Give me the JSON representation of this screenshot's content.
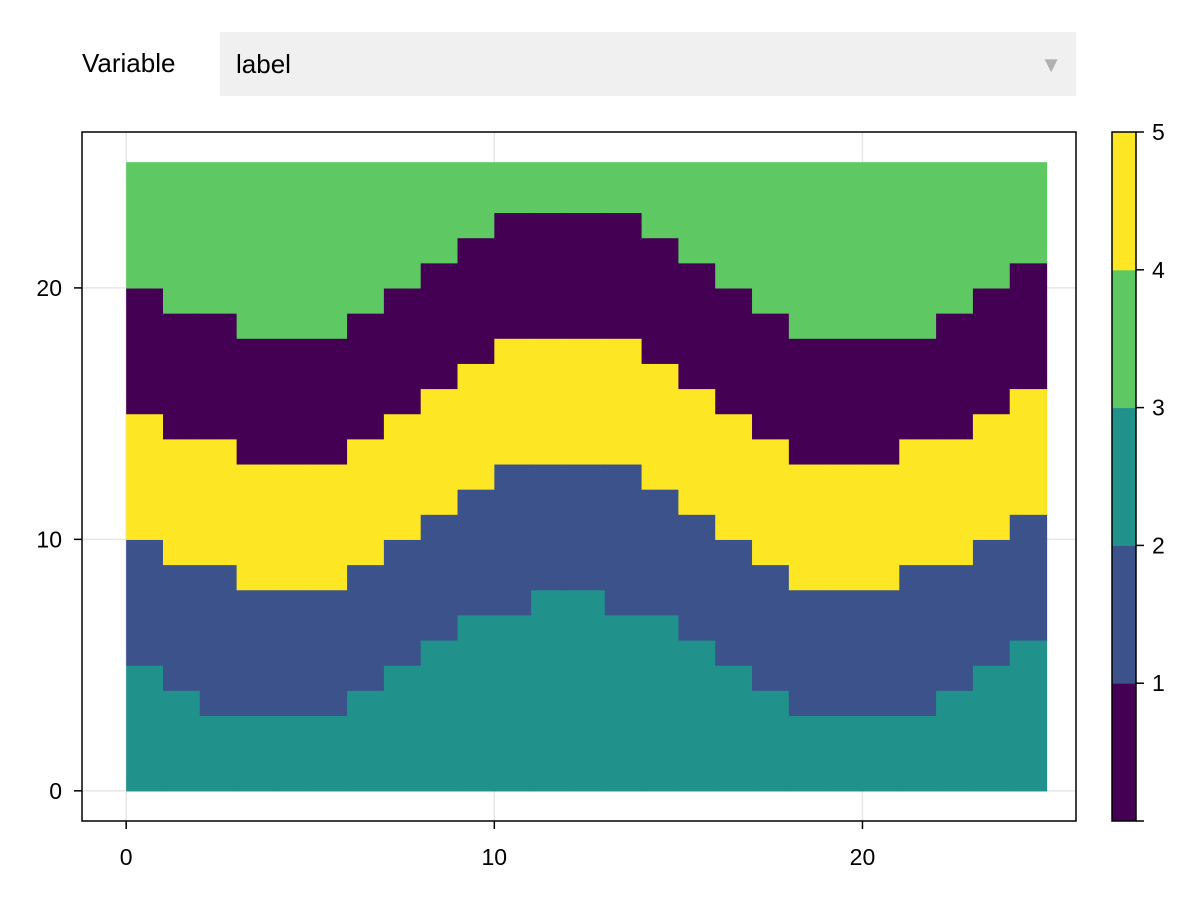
{
  "menu": {
    "label": "Variable",
    "selected": "label",
    "arrow_icon": "triangle-down-icon"
  },
  "chart_data": {
    "type": "heatmap",
    "title": "",
    "xlabel": "",
    "ylabel": "",
    "xlim": [
      -1.2,
      25.8
    ],
    "ylim": [
      -1.2,
      26.2
    ],
    "xticks": [
      0,
      10,
      20
    ],
    "yticks": [
      0,
      10,
      20
    ],
    "grid": true,
    "x_cells": 25,
    "y_cells": 25,
    "x_range": [
      0,
      25
    ],
    "y_range": [
      0,
      25
    ],
    "colormap": [
      "#440154",
      "#3b528b",
      "#21918c",
      "#5ec962",
      "#fde725"
    ],
    "colorbar": {
      "ticks": [
        1,
        2,
        3,
        4,
        5
      ],
      "range": [
        0,
        5
      ]
    },
    "band_values": [
      3,
      2,
      5,
      1,
      4
    ],
    "boundaries": [
      [
        5,
        4,
        3,
        3,
        3,
        3,
        4,
        5,
        6,
        7,
        7,
        8,
        8,
        7,
        7,
        6,
        5,
        4,
        3,
        3,
        3,
        3,
        4,
        5,
        6
      ],
      [
        10,
        9,
        9,
        8,
        8,
        8,
        9,
        10,
        11,
        12,
        13,
        13,
        13,
        13,
        12,
        11,
        10,
        9,
        8,
        8,
        8,
        9,
        9,
        10,
        11
      ],
      [
        15,
        14,
        14,
        13,
        13,
        13,
        14,
        15,
        16,
        17,
        18,
        18,
        18,
        18,
        17,
        16,
        15,
        14,
        13,
        13,
        13,
        14,
        14,
        15,
        16
      ],
      [
        20,
        19,
        19,
        18,
        18,
        18,
        19,
        20,
        21,
        22,
        23,
        23,
        23,
        23,
        22,
        21,
        20,
        19,
        18,
        18,
        18,
        18,
        19,
        20,
        21
      ]
    ]
  }
}
